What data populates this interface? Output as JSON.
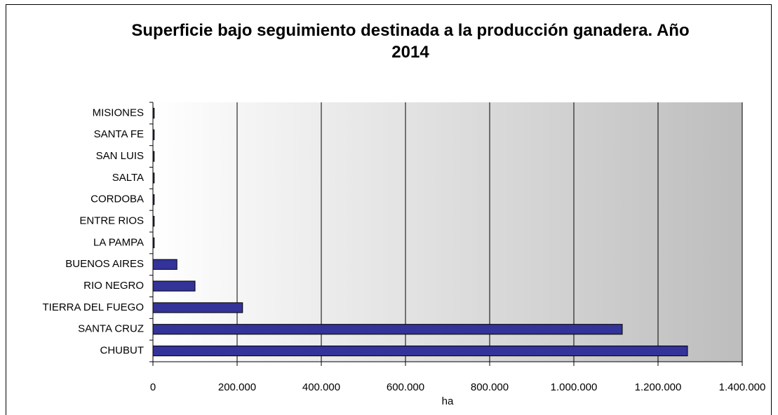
{
  "chart_data": {
    "type": "barh",
    "title": "Superficie bajo seguimiento destinada a la producción ganadera. Año 2014",
    "xlabel": "ha",
    "categories": [
      "MISIONES",
      "SANTA FE",
      "SAN LUIS",
      "SALTA",
      "CORDOBA",
      "ENTRE RIOS",
      "LA PAMPA",
      "BUENOS AIRES",
      "RIO NEGRO",
      "TIERRA DEL FUEGO",
      "SANTA CRUZ",
      "CHUBUT"
    ],
    "values": [
      3000,
      3000,
      3000,
      3000,
      3000,
      3000,
      3000,
      57000,
      100000,
      213000,
      1115000,
      1270000
    ],
    "color": "#333399",
    "xlim": [
      0,
      1400000
    ],
    "xticks": [
      0,
      {
        "value": 200000,
        "label": "200.000"
      },
      {
        "value": 400000,
        "label": "400.000"
      },
      {
        "value": 600000,
        "label": "600.000"
      },
      {
        "value": 800000,
        "label": "800.000"
      },
      {
        "value": 1000000,
        "label": "1.000.000"
      },
      {
        "value": 1200000,
        "label": "1.200.000"
      },
      {
        "value": 1400000,
        "label": "1.400.000"
      }
    ],
    "grid": true
  }
}
